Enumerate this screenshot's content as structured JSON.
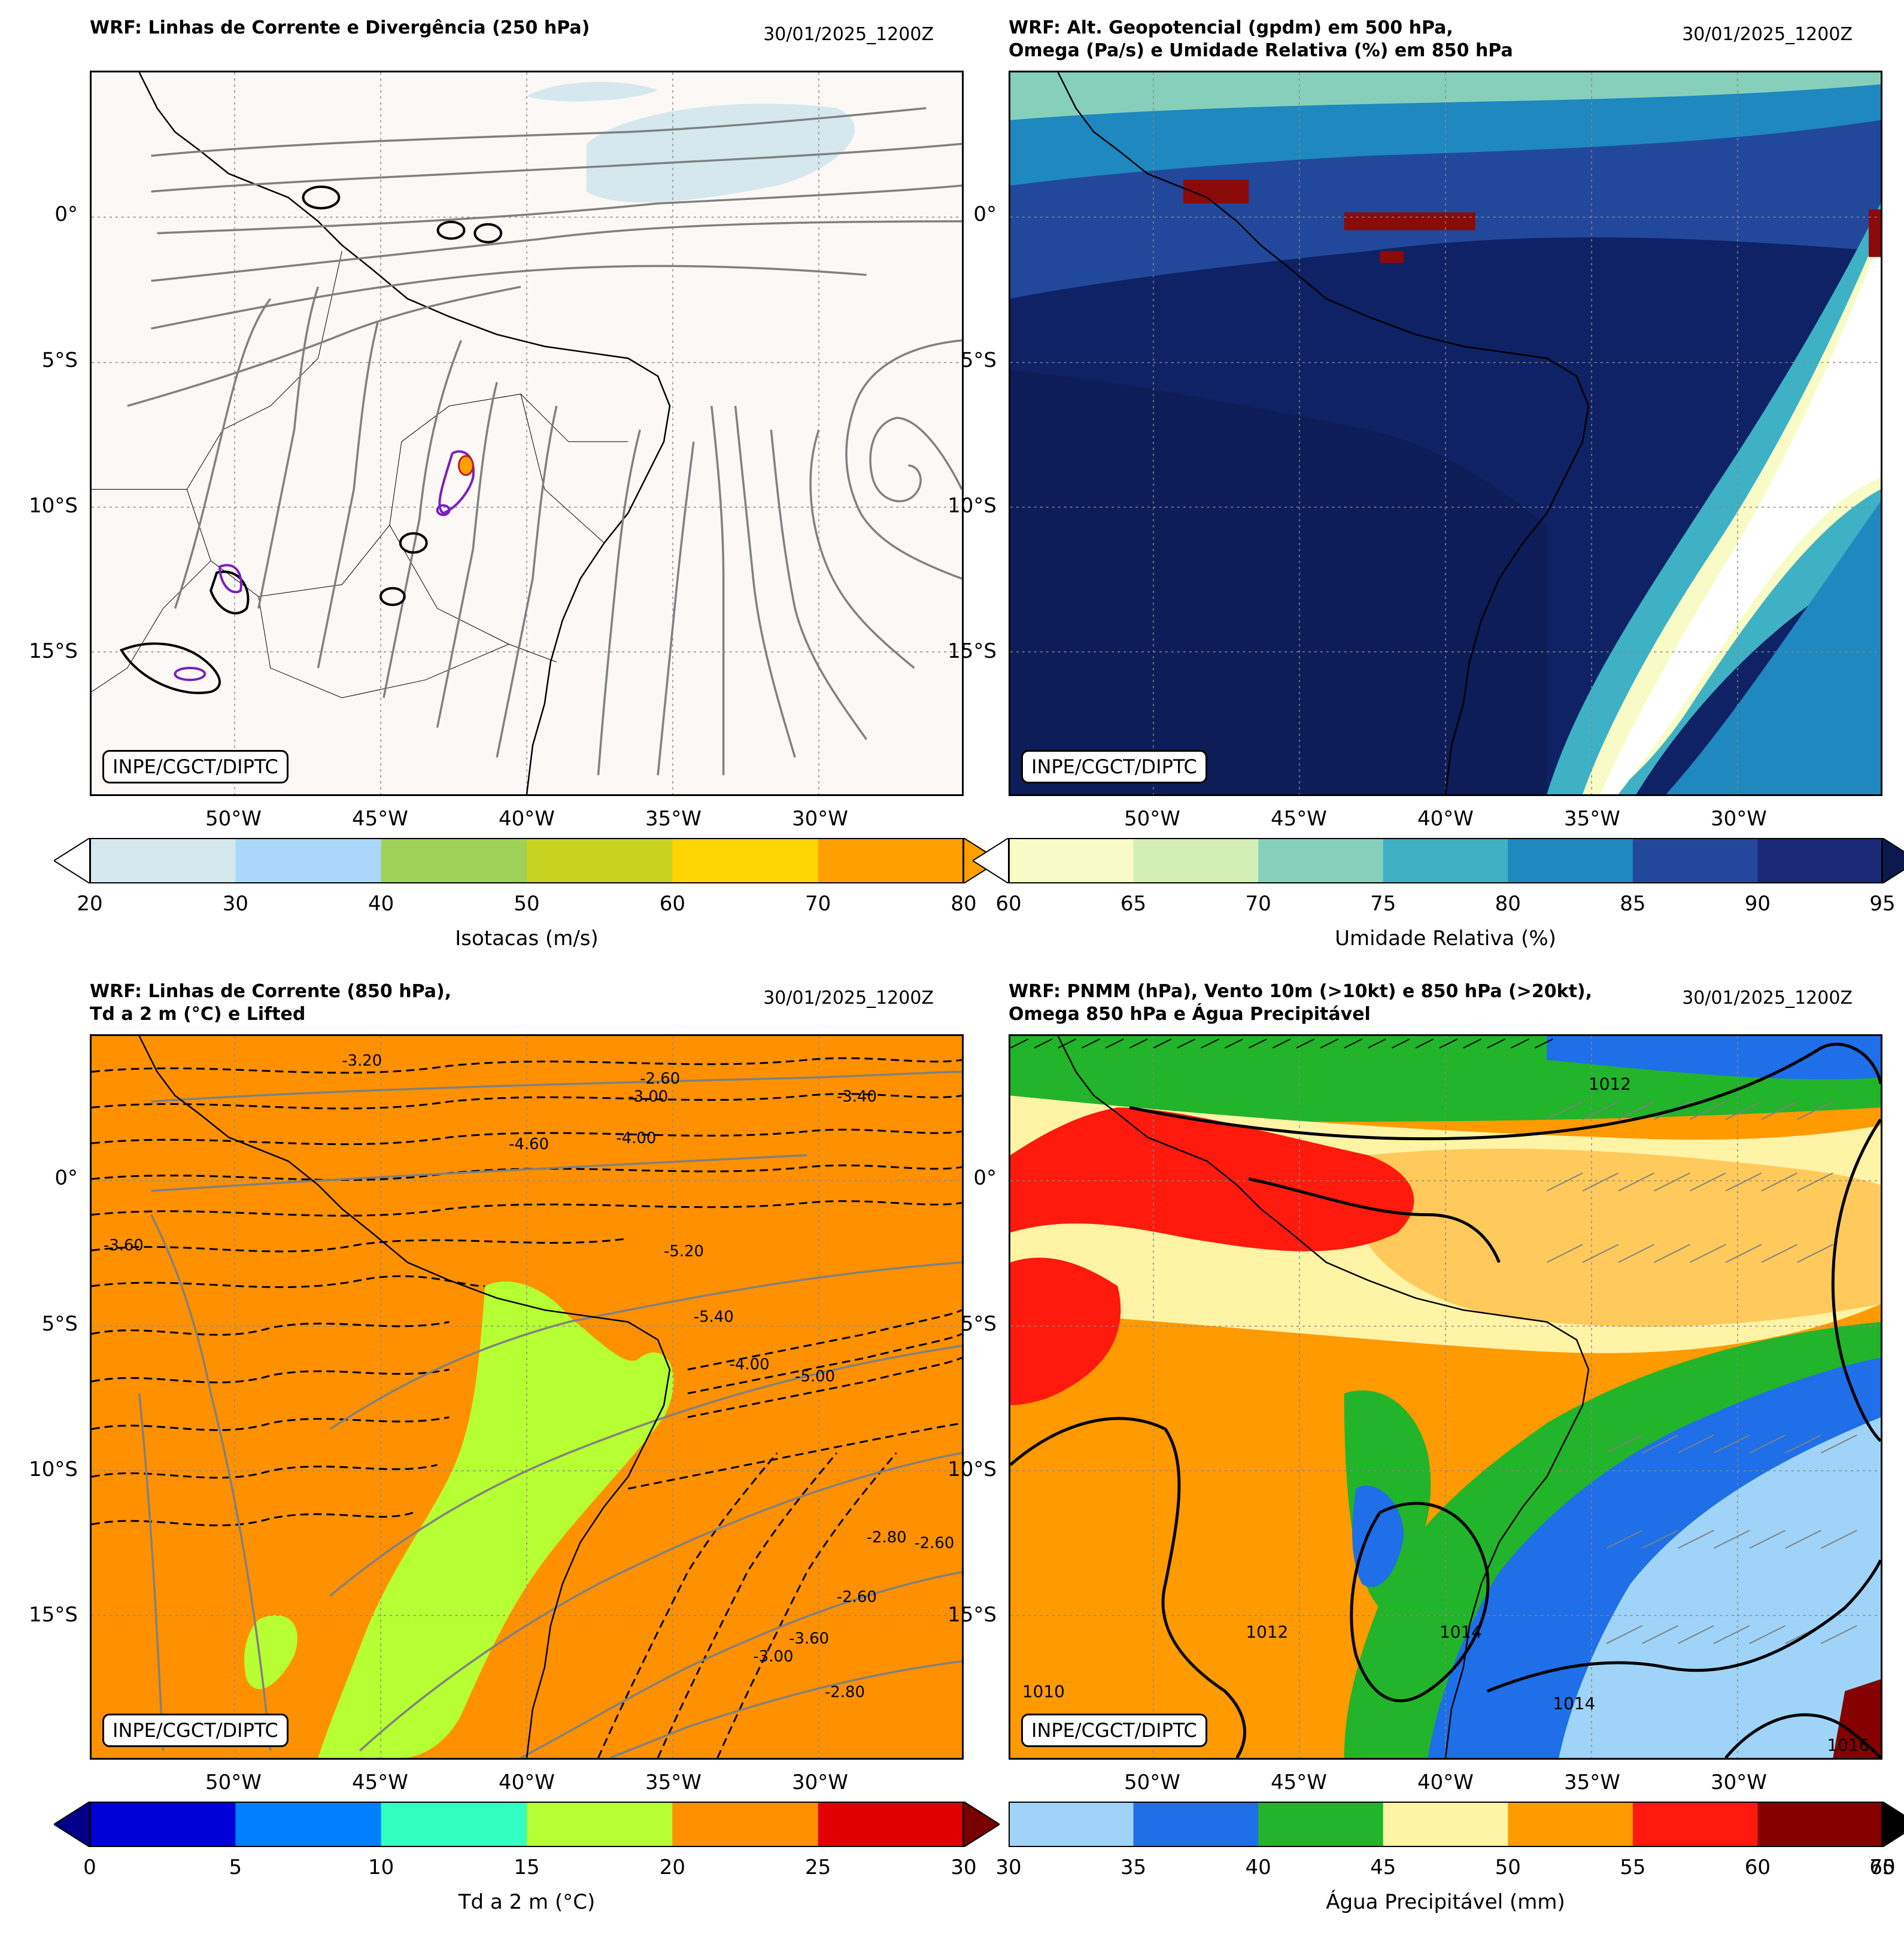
{
  "panels": [
    {
      "title": "WRF: Linhas de Corrente e Divergência (250 hPa)",
      "date": "30/01/2025_1200Z",
      "stamp": "INPE/CGCT/DIPTC",
      "lat_labels": [
        "0°",
        "5°S",
        "10°S",
        "15°S"
      ],
      "lon_labels": [
        "50°W",
        "45°W",
        "40°W",
        "35°W",
        "30°W"
      ],
      "colorbar": {
        "label": "Isotacas (m/s)",
        "ticks": [
          "20",
          "30",
          "40",
          "50",
          "60",
          "70",
          "80"
        ],
        "colors": [
          "#d4e8ee",
          "#a9d8fb",
          "#9fd157",
          "#c8d31f",
          "#ffd400",
          "#ff9f00"
        ],
        "extend_low": "#ffffff",
        "extend_high": "#ff9f00"
      },
      "map_background": "#fbf8f6"
    },
    {
      "title": "WRF: Alt. Geopotencial (gpdm) em 500 hPa,\nOmega (Pa/s) e Umidade Relativa (%) em 850 hPa",
      "date": "30/01/2025_1200Z",
      "stamp": "INPE/CGCT/DIPTC",
      "lat_labels": [
        "0°",
        "5°S",
        "10°S",
        "15°S"
      ],
      "lon_labels": [
        "50°W",
        "45°W",
        "40°W",
        "35°W",
        "30°W"
      ],
      "colorbar": {
        "label": "Umidade Relativa (%)",
        "ticks": [
          "60",
          "65",
          "70",
          "75",
          "80",
          "85",
          "90",
          "95"
        ],
        "colors": [
          "#f8fbc5",
          "#d3efb5",
          "#86d0bb",
          "#3eb1c5",
          "#1e88bf",
          "#22489c",
          "#192978"
        ],
        "extend_low": "#ffffff",
        "extend_high": "#0b1a4e"
      },
      "map_background": "#0f2265"
    },
    {
      "title": "WRF: Linhas de Corrente (850 hPa),\nTd a 2 m (°C) e Lifted",
      "date": "30/01/2025_1200Z",
      "stamp": "INPE/CGCT/DIPTC",
      "lat_labels": [
        "0°",
        "5°S",
        "10°S",
        "15°S"
      ],
      "lon_labels": [
        "50°W",
        "45°W",
        "40°W",
        "35°W",
        "30°W"
      ],
      "colorbar": {
        "label": "Td a 2 m (°C)",
        "ticks": [
          "0",
          "5",
          "10",
          "15",
          "20",
          "25",
          "30"
        ],
        "colors": [
          "#0000d9",
          "#0080ff",
          "#33ffc0",
          "#b6ff33",
          "#ff9100",
          "#e00000"
        ],
        "extend_low": "#00008b",
        "extend_high": "#7a0000"
      },
      "map_background": "#ff9100",
      "contour_labels": [
        "-3.20",
        "-3.60",
        "-4.00",
        "-4.60",
        "-3.00",
        "-2.60",
        "-3.40",
        "-5.20",
        "-5.40",
        "-2.80",
        "-2.60",
        "-3.60",
        "-4.00",
        "-5.00",
        "-2.60",
        "-3.00",
        "-2.80"
      ]
    },
    {
      "title": "WRF: PNMM (hPa), Vento 10m (>10kt) e 850 hPa (>20kt),\nOmega 850 hPa e Água Precipitável",
      "date": "30/01/2025_1200Z",
      "stamp": "INPE/CGCT/DIPTC",
      "lat_labels": [
        "0°",
        "5°S",
        "10°S",
        "15°S"
      ],
      "lon_labels": [
        "50°W",
        "45°W",
        "40°W",
        "35°W",
        "30°W"
      ],
      "colorbar": {
        "label": "Água Precipitável (mm)",
        "ticks": [
          "30",
          "35",
          "40",
          "45",
          "50",
          "55",
          "60",
          "70"
        ],
        "overlap_tick": "65",
        "colors": [
          "#9fd4f8",
          "#1e6fe8",
          "#22b42a",
          "#fff3a6",
          "#ff9a00",
          "#ff1a0d",
          "#850000"
        ],
        "extend_high": "#000000"
      },
      "map_background": "#ff9a00",
      "isobar_labels": [
        "1012",
        "1014",
        "1014",
        "1016",
        "1012",
        "1010"
      ]
    }
  ]
}
